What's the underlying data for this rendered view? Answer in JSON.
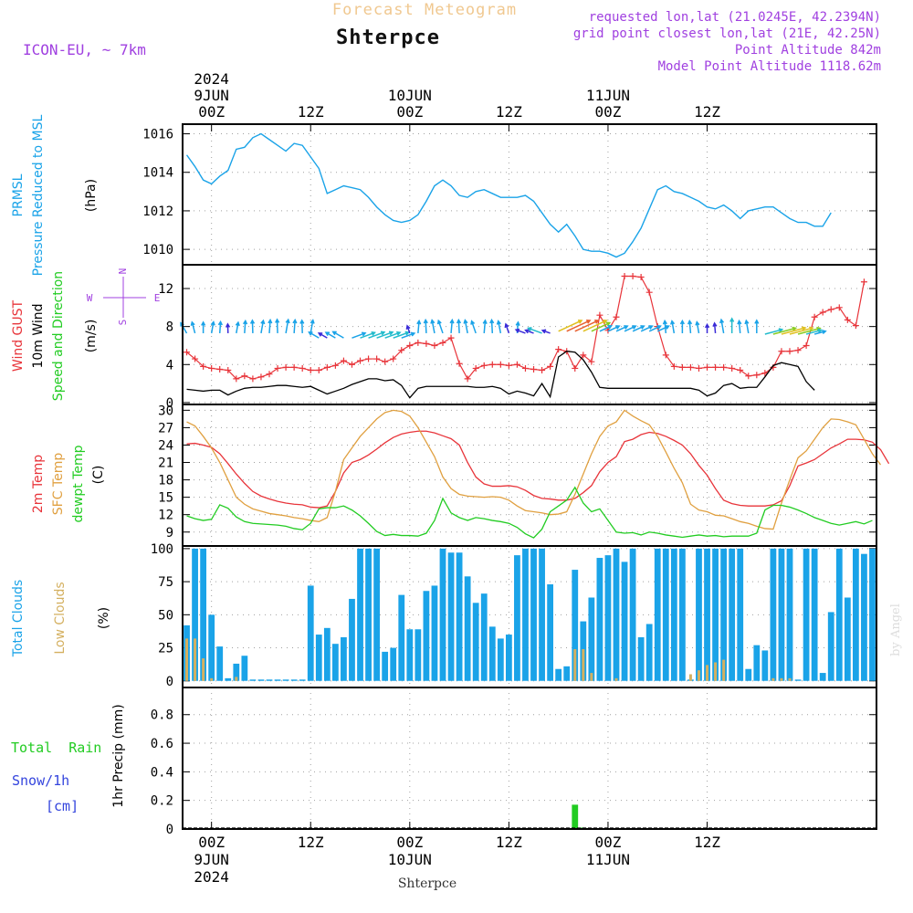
{
  "header": {
    "super_title": "Forecast Meteogram",
    "station": "Shterpce",
    "model": "ICON-EU, ~ 7km",
    "requested": "requested lon,lat (21.0245E, 42.2394N)",
    "grid": "grid point closest lon,lat (21E, 42.25N)",
    "point_alt": "Point Altitude 842m",
    "model_alt": "Model Point Altitude 1118.62m"
  },
  "time_axis": {
    "top": [
      {
        "l1": "2024",
        "l2": "9JUN",
        "l3": "00Z",
        "step": 3
      },
      {
        "l1": "",
        "l2": "",
        "l3": "12Z",
        "step": 15
      },
      {
        "l1": "",
        "l2": "10JUN",
        "l3": "00Z",
        "step": 27
      },
      {
        "l1": "",
        "l2": "",
        "l3": "12Z",
        "step": 39
      },
      {
        "l1": "",
        "l2": "11JUN",
        "l3": "00Z",
        "step": 51
      },
      {
        "l1": "",
        "l2": "",
        "l3": "12Z",
        "step": 63
      }
    ],
    "bottom": [
      {
        "l1": "00Z",
        "l2": "9JUN",
        "l3": "2024",
        "step": 3
      },
      {
        "l1": "12Z",
        "l2": "",
        "l3": "",
        "step": 15
      },
      {
        "l1": "00Z",
        "l2": "10JUN",
        "l3": "",
        "step": 27
      },
      {
        "l1": "12Z",
        "l2": "",
        "l3": "",
        "step": 39
      },
      {
        "l1": "00Z",
        "l2": "11JUN",
        "l3": "",
        "step": 51
      },
      {
        "l1": "12Z",
        "l2": "",
        "l3": "",
        "step": 63
      }
    ],
    "footer_station": "Shterpce",
    "credit": "by Angel"
  },
  "colors": {
    "cyan": "#1aa3e8",
    "red": "#e8343a",
    "orange": "#e0a040",
    "green": "#22cc22",
    "purple": "#a040e0",
    "black": "#000000",
    "blue": "#3344dd",
    "lowcloud": "#d4b060",
    "grid": "#9a9a9a"
  },
  "panels": {
    "pressure": {
      "labels": [
        "PRMSL",
        "Pressure Reduced to MSL",
        "(hPa)"
      ],
      "yticks": [
        1010,
        1012,
        1014,
        1016
      ],
      "ylim": [
        1009.2,
        1016.5
      ]
    },
    "wind": {
      "labels": [
        "Wind GUST",
        "10m Wind",
        "Speed and Direction",
        "(m/s)"
      ],
      "yticks": [
        0,
        4,
        8,
        12
      ],
      "ylim": [
        -0.2,
        14.5
      ],
      "compass": {
        "n": "N",
        "s": "S",
        "w": "W",
        "e": "E"
      }
    },
    "temp": {
      "labels": [
        "2m Temp",
        "SFC Temp",
        "dewpt Temp",
        "(C)"
      ],
      "yticks": [
        9,
        12,
        15,
        18,
        21,
        24,
        27,
        30
      ],
      "ylim": [
        6.6,
        31
      ]
    },
    "clouds": {
      "labels": [
        "Total Clouds",
        "Low Clouds",
        "(%)"
      ],
      "yticks": [
        0,
        25,
        50,
        75,
        100
      ],
      "ylim": [
        -5,
        102
      ]
    },
    "precip": {
      "labels": [
        "Total  Rain",
        "Snow/1h",
        "[cm]",
        "1hr Precip (mm)"
      ],
      "yticks": [
        0,
        0.2,
        0.4,
        0.6,
        0.8
      ],
      "ylim": [
        0,
        0.99
      ]
    }
  },
  "chart_data": [
    {
      "type": "line",
      "title": "PRMSL Pressure Reduced to MSL",
      "ylabel": "hPa",
      "x_unit": "hour from 2024-06-08 21Z",
      "series": [
        {
          "name": "PRMSL",
          "color": "#1aa3e8",
          "values": [
            1014.9,
            1014.3,
            1013.6,
            1013.4,
            1013.8,
            1014.1,
            1015.2,
            1015.3,
            1015.8,
            1016.0,
            1015.7,
            1015.4,
            1015.1,
            1015.5,
            1015.4,
            1014.8,
            1014.2,
            1012.9,
            1013.1,
            1013.3,
            1013.2,
            1013.1,
            1012.7,
            1012.2,
            1011.8,
            1011.5,
            1011.4,
            1011.5,
            1011.8,
            1012.5,
            1013.3,
            1013.6,
            1013.3,
            1012.8,
            1012.7,
            1013.0,
            1013.1,
            1012.9,
            1012.7,
            1012.7,
            1012.7,
            1012.8,
            1012.5,
            1011.9,
            1011.3,
            1010.9,
            1011.3,
            1010.7,
            1010.0,
            1009.9,
            1009.9,
            1009.8,
            1009.6,
            1009.8,
            1010.4,
            1011.1,
            1012.1,
            1013.1,
            1013.3,
            1013.0,
            1012.9,
            1012.7,
            1012.5,
            1012.2,
            1012.1,
            1012.3,
            1012.0,
            1011.6,
            1012.0,
            1012.1,
            1012.2,
            1012.2,
            1011.9,
            1011.6,
            1011.4,
            1011.4,
            1011.2,
            1011.2,
            1011.9
          ]
        }
      ]
    },
    {
      "type": "line",
      "title": "Wind GUST / 10m Wind Speed and Direction",
      "ylabel": "m/s",
      "series": [
        {
          "name": "Wind GUST",
          "color": "#e8343a",
          "values": [
            5.3,
            4.6,
            3.8,
            3.6,
            3.5,
            3.4,
            2.5,
            2.8,
            2.5,
            2.7,
            3.0,
            3.6,
            3.7,
            3.7,
            3.6,
            3.4,
            3.4,
            3.7,
            3.9,
            4.4,
            4.0,
            4.4,
            4.6,
            4.6,
            4.3,
            4.6,
            5.5,
            6.0,
            6.3,
            6.2,
            6.0,
            6.3,
            6.8,
            4.1,
            2.5,
            3.6,
            3.9,
            4.0,
            4.0,
            3.9,
            4.0,
            3.6,
            3.5,
            3.4,
            3.8,
            5.6,
            5.4,
            3.6,
            5.0,
            4.3,
            9.2,
            7.6,
            9.0,
            13.3,
            13.3,
            13.2,
            11.6,
            8.0,
            5.0,
            3.8,
            3.7,
            3.7,
            3.6,
            3.7,
            3.7,
            3.7,
            3.6,
            3.4,
            2.8,
            2.9,
            3.1,
            3.7,
            5.4,
            5.4,
            5.5,
            6.0,
            9.0,
            9.5,
            9.8,
            10.0,
            8.7,
            8.1,
            12.7
          ]
        },
        {
          "name": "10m Wind",
          "color": "#000000",
          "values": [
            1.4,
            1.3,
            1.2,
            1.3,
            1.3,
            0.8,
            1.2,
            1.5,
            1.6,
            1.6,
            1.7,
            1.8,
            1.8,
            1.7,
            1.6,
            1.7,
            1.3,
            0.9,
            1.2,
            1.5,
            1.9,
            2.2,
            2.5,
            2.5,
            2.3,
            2.4,
            1.8,
            0.5,
            1.5,
            1.7,
            1.7,
            1.7,
            1.7,
            1.7,
            1.7,
            1.6,
            1.6,
            1.7,
            1.5,
            0.9,
            1.2,
            1.0,
            0.7,
            2.0,
            0.6,
            4.8,
            5.4,
            5.3,
            4.5,
            3.2,
            1.6,
            1.5,
            1.5,
            1.5,
            1.5,
            1.5,
            1.5,
            1.5,
            1.5,
            1.5,
            1.5,
            1.5,
            1.3,
            0.7,
            1.0,
            1.8,
            2.0,
            1.5,
            1.6,
            1.6,
            2.7,
            3.9,
            4.2,
            4.0,
            3.8,
            2.2,
            1.3
          ]
        }
      ]
    },
    {
      "type": "line",
      "title": "2m Temp / SFC Temp / dewpt Temp",
      "ylabel": "C",
      "series": [
        {
          "name": "2m Temp",
          "color": "#e8343a",
          "values": [
            24.2,
            24.3,
            24.0,
            23.6,
            22.5,
            20.8,
            19.0,
            17.4,
            16.0,
            15.2,
            14.7,
            14.3,
            14.0,
            13.8,
            13.7,
            13.3,
            13.2,
            13.5,
            16.0,
            19.2,
            21.0,
            21.5,
            22.3,
            23.3,
            24.4,
            25.3,
            25.9,
            26.2,
            26.4,
            26.4,
            26.1,
            25.6,
            25.1,
            24.0,
            21.0,
            18.5,
            17.3,
            16.9,
            16.9,
            17.0,
            16.8,
            16.2,
            15.3,
            14.8,
            14.7,
            14.5,
            14.5,
            14.8,
            15.8,
            17.0,
            19.4,
            21.0,
            22.0,
            24.6,
            25.0,
            25.8,
            26.2,
            26.0,
            25.5,
            24.8,
            24.0,
            22.5,
            20.5,
            18.8,
            16.5,
            14.5,
            13.9,
            13.6,
            13.5,
            13.5,
            13.5,
            13.7,
            14.4,
            17.0,
            20.4,
            20.9,
            21.5,
            22.5,
            23.5,
            24.2,
            25.0,
            25.0,
            24.9,
            24.5,
            23.2,
            20.8
          ]
        },
        {
          "name": "SFC Temp",
          "color": "#e0a040",
          "values": [
            28.0,
            27.3,
            25.5,
            23.5,
            21.0,
            18.0,
            15.0,
            13.8,
            13.0,
            12.6,
            12.2,
            12.0,
            11.8,
            11.5,
            11.3,
            11.0,
            10.8,
            11.5,
            16.0,
            21.5,
            23.5,
            25.5,
            27.0,
            28.5,
            29.6,
            30.0,
            29.8,
            29.0,
            27.0,
            24.5,
            22.0,
            18.5,
            16.5,
            15.5,
            15.2,
            15.1,
            15.0,
            15.1,
            15.0,
            14.5,
            13.5,
            12.7,
            12.5,
            12.3,
            12.0,
            12.1,
            12.5,
            15.5,
            19.0,
            22.5,
            25.5,
            27.3,
            28.0,
            30.0,
            29.0,
            28.2,
            27.5,
            25.5,
            22.8,
            20.0,
            17.5,
            13.8,
            12.8,
            12.5,
            11.9,
            11.8,
            11.3,
            10.8,
            10.5,
            10.0,
            9.6,
            9.5,
            14.0,
            18.0,
            21.8,
            23.0,
            25.0,
            27.0,
            28.5,
            28.4,
            28.0,
            27.5,
            25.0,
            22.5,
            20.6
          ]
        },
        {
          "name": "dewpt Temp",
          "color": "#22cc22",
          "values": [
            11.8,
            11.3,
            11.0,
            11.2,
            13.7,
            13.1,
            11.6,
            10.8,
            10.5,
            10.4,
            10.3,
            10.2,
            10.0,
            9.6,
            9.4,
            10.5,
            13.0,
            13.2,
            13.2,
            13.5,
            12.8,
            11.8,
            10.5,
            9.1,
            8.4,
            8.6,
            8.4,
            8.4,
            8.3,
            8.8,
            11.0,
            14.8,
            12.3,
            11.5,
            11.0,
            11.5,
            11.3,
            11.0,
            10.8,
            10.5,
            9.8,
            8.7,
            8.0,
            9.5,
            12.5,
            13.5,
            14.5,
            16.7,
            14.0,
            12.5,
            13.0,
            11.0,
            9.0,
            8.8,
            8.9,
            8.5,
            9.0,
            8.8,
            8.5,
            8.3,
            8.1,
            8.3,
            8.5,
            8.3,
            8.4,
            8.2,
            8.3,
            8.3,
            8.3,
            8.8,
            12.8,
            13.6,
            13.6,
            13.3,
            12.8,
            12.2,
            11.5,
            11.0,
            10.5,
            10.2,
            10.5,
            10.8,
            10.4,
            11.0
          ]
        }
      ]
    },
    {
      "type": "bar",
      "title": "Total Clouds / Low Clouds",
      "ylabel": "%",
      "series": [
        {
          "name": "Total Clouds",
          "color": "#1aa3e8",
          "values": [
            42,
            100,
            100,
            50,
            26,
            2,
            13,
            19,
            1,
            1,
            1,
            1,
            1,
            1,
            1,
            72,
            35,
            40,
            28,
            33,
            62,
            100,
            100,
            100,
            22,
            25,
            65,
            39,
            39,
            68,
            72,
            100,
            97,
            97,
            79,
            59,
            66,
            41,
            32,
            35,
            95,
            100,
            100,
            100,
            73,
            9,
            11,
            84,
            45,
            63,
            93,
            95,
            100,
            90,
            100,
            33,
            43,
            100,
            100,
            100,
            100,
            1,
            100,
            100,
            100,
            100,
            100,
            100,
            9,
            27,
            23,
            100,
            100,
            100,
            1,
            100,
            100,
            6,
            52,
            100,
            63,
            100,
            96,
            100
          ]
        },
        {
          "name": "Low Clouds",
          "color": "#d4b060",
          "values": [
            32,
            32,
            17,
            2,
            0,
            0,
            3,
            0,
            0,
            0,
            0,
            0,
            0,
            0,
            0,
            0,
            0,
            0,
            0,
            0,
            0,
            0,
            0,
            0,
            0,
            0,
            0,
            0,
            0,
            0,
            0,
            0,
            0,
            0,
            0,
            0,
            0,
            0,
            0,
            0,
            0,
            0,
            0,
            0,
            0,
            0,
            0,
            24,
            24,
            6,
            0,
            0,
            2,
            0,
            0,
            0,
            0,
            0,
            0,
            0,
            0,
            5,
            8,
            12,
            14,
            16,
            0,
            0,
            0,
            0,
            0,
            2,
            2,
            2,
            0,
            0,
            0,
            0,
            0,
            0,
            0,
            0,
            0
          ]
        }
      ]
    },
    {
      "type": "bar",
      "title": "1hr Precip (mm)",
      "ylabel": "mm",
      "series": [
        {
          "name": "Total Rain",
          "color": "#22cc22",
          "values": [
            0,
            0,
            0,
            0,
            0,
            0,
            0,
            0,
            0,
            0,
            0,
            0,
            0,
            0,
            0,
            0,
            0,
            0,
            0,
            0,
            0,
            0,
            0,
            0,
            0,
            0,
            0,
            0,
            0,
            0,
            0,
            0,
            0,
            0,
            0,
            0,
            0,
            0,
            0,
            0,
            0,
            0,
            0,
            0,
            0,
            0,
            0,
            0.17,
            0.01,
            0,
            0,
            0,
            0,
            0,
            0,
            0,
            0,
            0,
            0,
            0,
            0,
            0,
            0,
            0,
            0,
            0,
            0,
            0,
            0,
            0,
            0,
            0,
            0,
            0,
            0,
            0,
            0,
            0,
            0
          ]
        },
        {
          "name": "Snow/1h",
          "color": "#3344dd",
          "values": []
        }
      ]
    }
  ]
}
